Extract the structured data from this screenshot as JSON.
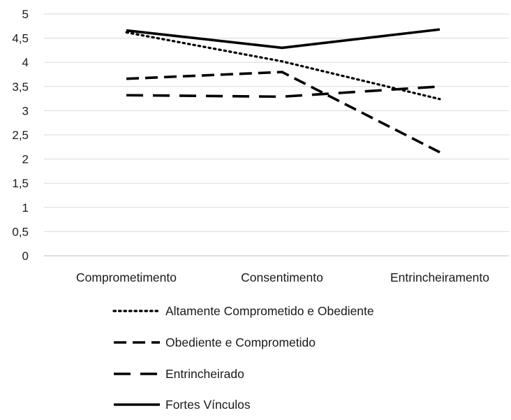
{
  "chart_data": {
    "type": "line",
    "categories": [
      "Comprometimento",
      "Consentimento",
      "Entrincheiramento"
    ],
    "ylim": [
      0,
      5
    ],
    "yticks": [
      "0",
      "0,5",
      "1",
      "1,5",
      "2",
      "2,5",
      "3",
      "3,5",
      "4",
      "4,5",
      "5"
    ],
    "ytick_values": [
      0,
      0.5,
      1,
      1.5,
      2,
      2.5,
      3,
      3.5,
      4,
      4.5,
      5
    ],
    "grid": true,
    "legend_position": "bottom",
    "series": [
      {
        "name": "Altamente Comprometido e Obediente",
        "values": [
          4.62,
          4.02,
          3.24
        ],
        "style": "dotted",
        "color": "#000000"
      },
      {
        "name": "Obediente e Comprometido",
        "values": [
          3.66,
          3.8,
          2.14
        ],
        "style": "dashed",
        "color": "#000000"
      },
      {
        "name": "Entrincheirado",
        "values": [
          3.32,
          3.29,
          3.5
        ],
        "style": "long-dashed",
        "color": "#000000"
      },
      {
        "name": "Fortes Vínculos",
        "values": [
          4.66,
          4.3,
          4.68
        ],
        "style": "solid",
        "color": "#000000"
      }
    ],
    "colors": {
      "gridline": "#d9d9d9",
      "axis": "#bfbfbf",
      "text": "#1a1a1a"
    }
  }
}
